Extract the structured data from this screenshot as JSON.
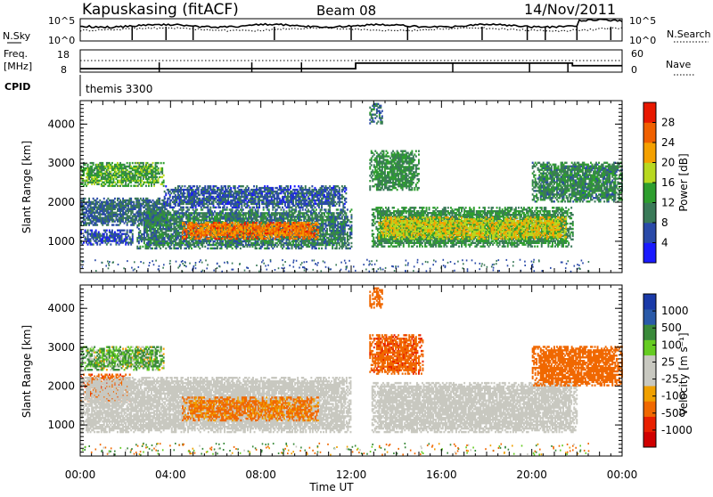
{
  "header": {
    "station": "Kapuskasing (fitACF)",
    "beam": "Beam 08",
    "date": "14/Nov/2011"
  },
  "top_panel": {
    "left_label": "N.Sky",
    "left_ticks": [
      "10^5",
      "10^0"
    ],
    "right_label": "N.Search",
    "right_ticks": [
      "10^5",
      "10^0"
    ]
  },
  "freq_panel": {
    "label_line1": "Freq.",
    "label_line2": "[MHz]",
    "left_ticks": [
      "18",
      "8"
    ],
    "right_label": "Nave",
    "right_ticks": [
      "60",
      "0"
    ]
  },
  "cpid_panel": {
    "label": "CPID",
    "value": "themis 3300"
  },
  "colors": {
    "power": [
      "#1a1aff",
      "#2a4aa8",
      "#3a7a58",
      "#2e9e2e",
      "#b8d820",
      "#f4a000",
      "#f06000",
      "#e81800"
    ],
    "velocity": [
      "#1a3aa8",
      "#2a5aa8",
      "#3a8a3a",
      "#66cc22",
      "#c8c8c0",
      "#c8c8c0",
      "#f0a000",
      "#f06800",
      "#e82000",
      "#d00000"
    ],
    "ground_scatter": "#c8c8c0"
  },
  "power_colorbar": {
    "title": "Power [dB]",
    "ticks": [
      "28",
      "24",
      "20",
      "16",
      "12",
      "8",
      "4"
    ]
  },
  "velocity_colorbar": {
    "title": "Velocity [m s⁻¹]",
    "ticks": [
      "1000",
      "500",
      "100",
      "25",
      "-25",
      "-100",
      "-500",
      "-1000"
    ]
  },
  "chart_data": [
    {
      "type": "heatmap",
      "title": "",
      "xlabel": "Time UT",
      "ylabel": "Slant Range [km]",
      "xlim": [
        0,
        24
      ],
      "ylim": [
        200,
        4600
      ],
      "xticks": [
        "00:00",
        "04:00",
        "08:00",
        "12:00",
        "16:00",
        "20:00",
        "00:00"
      ],
      "yticks": [
        1000,
        2000,
        3000,
        4000
      ],
      "z_label": "Power [dB]",
      "z_range": [
        0,
        30
      ],
      "regions": [
        {
          "t0": 0.0,
          "t1": 3.7,
          "r0": 2400,
          "r1": 3000,
          "level": 14
        },
        {
          "t0": 0.0,
          "t1": 4.0,
          "r0": 1400,
          "r1": 2100,
          "level": 8
        },
        {
          "t0": 0.0,
          "t1": 2.3,
          "r0": 900,
          "r1": 1300,
          "level": 6
        },
        {
          "t0": 2.5,
          "t1": 12.0,
          "r0": 800,
          "r1": 1800,
          "level": 10
        },
        {
          "t0": 3.7,
          "t1": 11.8,
          "r0": 1850,
          "r1": 2400,
          "level": 7
        },
        {
          "t0": 4.5,
          "t1": 10.5,
          "r0": 1050,
          "r1": 1500,
          "level": 25
        },
        {
          "t0": 12.9,
          "t1": 21.8,
          "r0": 850,
          "r1": 1850,
          "level": 12
        },
        {
          "t0": 13.2,
          "t1": 21.5,
          "r0": 1050,
          "r1": 1600,
          "level": 19
        },
        {
          "t0": 12.8,
          "t1": 15.0,
          "r0": 2300,
          "r1": 3300,
          "level": 12
        },
        {
          "t0": 20.0,
          "t1": 24.0,
          "r0": 2000,
          "r1": 3000,
          "level": 11
        },
        {
          "t0": 12.8,
          "t1": 13.4,
          "r0": 4000,
          "r1": 4500,
          "level": 9
        }
      ]
    },
    {
      "type": "heatmap",
      "title": "",
      "xlabel": "Time UT",
      "ylabel": "Slant Range [km]",
      "xlim": [
        0,
        24
      ],
      "ylim": [
        200,
        4600
      ],
      "xticks": [
        "00:00",
        "04:00",
        "08:00",
        "12:00",
        "16:00",
        "20:00",
        "00:00"
      ],
      "yticks": [
        1000,
        2000,
        3000,
        4000
      ],
      "z_label": "Velocity [m s⁻¹]",
      "z_range": [
        -1000,
        1000
      ],
      "regions": [
        {
          "t0": 0.0,
          "t1": 3.7,
          "r0": 2400,
          "r1": 3000,
          "level": 100
        },
        {
          "t0": 0.0,
          "t1": 2.2,
          "r0": 1600,
          "r1": 2300,
          "level": -400
        },
        {
          "t0": 0.0,
          "t1": 12.0,
          "r0": 800,
          "r1": 2200,
          "level": 0
        },
        {
          "t0": 4.5,
          "t1": 10.5,
          "r0": 1100,
          "r1": 1700,
          "level": -150
        },
        {
          "t0": 12.9,
          "t1": 22.0,
          "r0": 800,
          "r1": 2100,
          "level": 0
        },
        {
          "t0": 12.8,
          "t1": 15.2,
          "r0": 2300,
          "r1": 3300,
          "level": -400
        },
        {
          "t0": 20.0,
          "t1": 24.0,
          "r0": 2000,
          "r1": 3000,
          "level": -250
        },
        {
          "t0": 12.8,
          "t1": 13.4,
          "r0": 4000,
          "r1": 4500,
          "level": -300
        }
      ]
    }
  ]
}
